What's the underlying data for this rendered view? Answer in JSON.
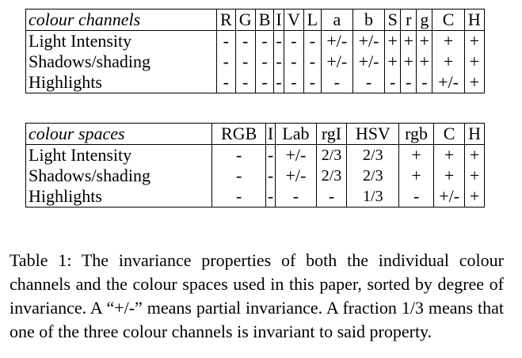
{
  "table1": {
    "header": [
      "colour channels",
      "R",
      "G",
      "B",
      "I",
      "V",
      "L",
      "a",
      "b",
      "S",
      "r",
      "g",
      "C",
      "H"
    ],
    "rows": [
      {
        "label": "Light Intensity",
        "cells": [
          "-",
          "-",
          "-",
          "-",
          "-",
          "-",
          "+/-",
          "+/-",
          "+",
          "+",
          "+",
          "+",
          "+"
        ]
      },
      {
        "label": "Shadows/shading",
        "cells": [
          "-",
          "-",
          "-",
          "-",
          "-",
          "-",
          "+/-",
          "+/-",
          "+",
          "+",
          "+",
          "+",
          "+"
        ]
      },
      {
        "label": "Highlights",
        "cells": [
          "-",
          "-",
          "-",
          "-",
          "-",
          "-",
          "-",
          "-",
          "-",
          "-",
          "-",
          "+/-",
          "+"
        ]
      }
    ]
  },
  "table2": {
    "header": [
      "colour spaces",
      "RGB",
      "I",
      "Lab",
      "rgI",
      "HSV",
      "rgb",
      "C",
      "H"
    ],
    "rows": [
      {
        "label": "Light Intensity",
        "cells": [
          "-",
          "-",
          "+/-",
          "2/3",
          "2/3",
          "+",
          "+",
          "+"
        ]
      },
      {
        "label": "Shadows/shading",
        "cells": [
          "-",
          "-",
          "+/-",
          "2/3",
          "2/3",
          "+",
          "+",
          "+"
        ]
      },
      {
        "label": "Highlights",
        "cells": [
          "-",
          "-",
          "-",
          "-",
          "1/3",
          "-",
          "+/-",
          "+"
        ]
      }
    ]
  },
  "caption": "Table 1: The invariance properties of both the individual colour channels and the colour spaces used in this paper, sorted by degree of invariance. A “+/-” means partial invariance. A fraction 1/3 means that one of the three colour channels is invariant to said property."
}
